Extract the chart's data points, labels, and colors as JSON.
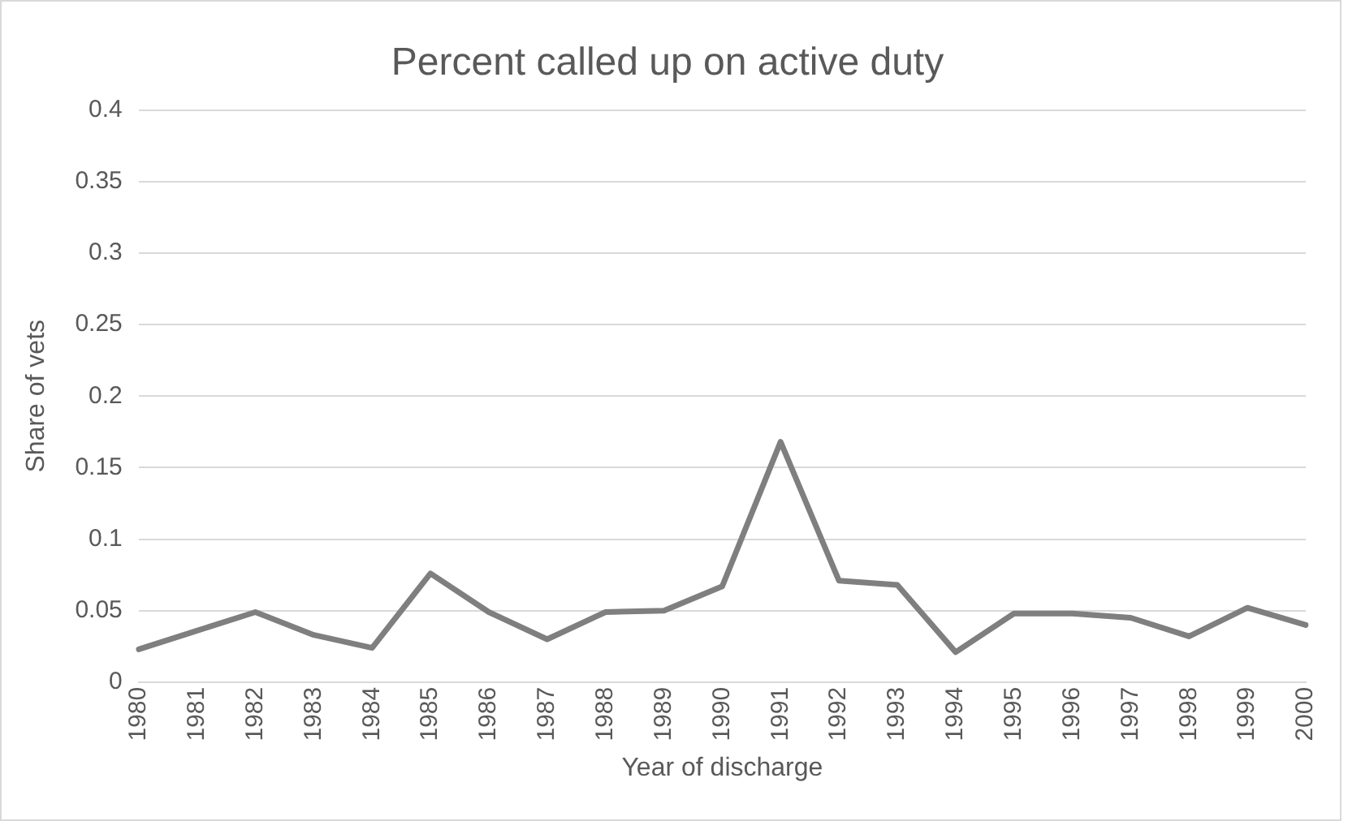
{
  "chart_data": {
    "type": "line",
    "title": "Percent called up on active duty",
    "xlabel": "Year of discharge",
    "ylabel": "Share of vets",
    "categories": [
      "1980",
      "1981",
      "1982",
      "1983",
      "1984",
      "1985",
      "1986",
      "1987",
      "1988",
      "1989",
      "1990",
      "1991",
      "1992",
      "1993",
      "1994",
      "1995",
      "1996",
      "1997",
      "1998",
      "1999",
      "2000"
    ],
    "series": [
      {
        "color": "#7f7f7f",
        "values": [
          0.023,
          0.036,
          0.049,
          0.033,
          0.024,
          0.076,
          0.049,
          0.03,
          0.049,
          0.05,
          0.067,
          0.168,
          0.071,
          0.068,
          0.021,
          0.048,
          0.048,
          0.045,
          0.032,
          0.052,
          0.04
        ]
      }
    ],
    "ylim": [
      0,
      0.4
    ],
    "yticks": [
      0,
      0.05,
      0.1,
      0.15,
      0.2,
      0.25,
      0.3,
      0.35,
      0.4
    ],
    "grid": "y",
    "legend": false,
    "marker": "none",
    "line_style": "solid"
  }
}
